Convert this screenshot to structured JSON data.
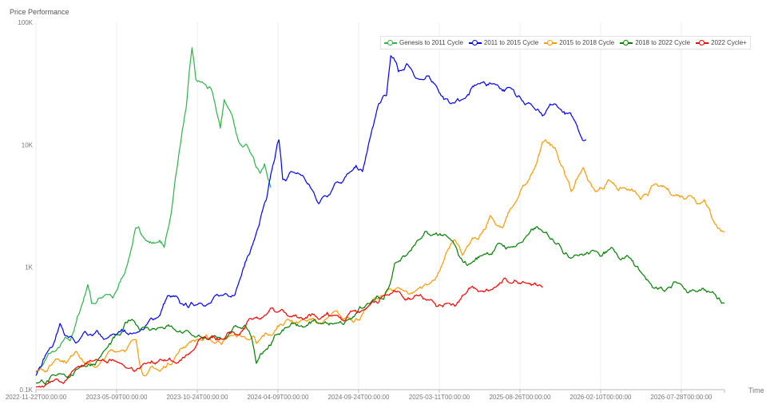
{
  "chart_data": {
    "type": "line",
    "title": "",
    "ylabel": "Price Performance",
    "xlabel": "Time",
    "yscale": "log",
    "ylim": [
      100,
      100000
    ],
    "yticks": [
      "100K",
      "10K",
      "1K",
      "0.1K"
    ],
    "ytick_values": [
      100000,
      10000,
      1000,
      100
    ],
    "xlim": [
      "2022-11-22",
      "2026-10-26"
    ],
    "xticks": [
      "2022-11-22T00:00:00",
      "2023-05-09T00:00:00",
      "2023-10-24T00:00:00",
      "2024-04-09T00:00:00",
      "2024-09-24T00:00:00",
      "2025-03-11T00:00:00",
      "2025-08-26T00:00:00",
      "2026-02-10T00:00:00",
      "2026-07-28T00:00:00"
    ],
    "grid": "vertical",
    "legend_position": "top-right",
    "series": [
      {
        "name": "Genesis to 2011 Cycle",
        "color": "#2eb34a",
        "points": [
          [
            "2022-11-22",
            141
          ],
          [
            "2022-12-01",
            150
          ],
          [
            "2023-01-01",
            206
          ],
          [
            "2023-02-01",
            250
          ],
          [
            "2023-03-10",
            720
          ],
          [
            "2023-03-18",
            506
          ],
          [
            "2023-04-01",
            560
          ],
          [
            "2023-05-01",
            560
          ],
          [
            "2023-06-01",
            1070
          ],
          [
            "2023-06-18",
            2100
          ],
          [
            "2023-07-01",
            1810
          ],
          [
            "2023-08-01",
            1600
          ],
          [
            "2023-08-16",
            1450
          ],
          [
            "2023-09-01",
            3000
          ],
          [
            "2023-09-15",
            8000
          ],
          [
            "2023-10-01",
            20000
          ],
          [
            "2023-10-13",
            62000
          ],
          [
            "2023-10-21",
            34000
          ],
          [
            "2023-11-07",
            31600
          ],
          [
            "2023-11-24",
            27200
          ],
          [
            "2023-12-11",
            13700
          ],
          [
            "2023-12-19",
            23400
          ],
          [
            "2024-01-05",
            17200
          ],
          [
            "2024-01-22",
            10000
          ],
          [
            "2024-02-07",
            9470
          ],
          [
            "2024-02-24",
            6500
          ],
          [
            "2024-03-12",
            7000
          ],
          [
            "2024-03-25",
            4470
          ]
        ]
      },
      {
        "name": "2011 to 2015 Cycle",
        "color": "#0000ff",
        "points": [
          [
            "2022-11-22",
            130
          ],
          [
            "2022-12-15",
            200
          ],
          [
            "2023-01-11",
            347
          ],
          [
            "2023-02-13",
            240
          ],
          [
            "2023-03-10",
            278
          ],
          [
            "2023-04-12",
            257
          ],
          [
            "2023-06-18",
            290
          ],
          [
            "2023-08-07",
            404
          ],
          [
            "2023-08-24",
            588
          ],
          [
            "2023-09-18",
            506
          ],
          [
            "2023-10-27",
            506
          ],
          [
            "2023-12-16",
            588
          ],
          [
            "2024-01-18",
            740
          ],
          [
            "2024-02-20",
            1680
          ],
          [
            "2024-03-16",
            3570
          ],
          [
            "2024-04-02",
            7560
          ],
          [
            "2024-04-11",
            11000
          ],
          [
            "2024-04-19",
            5190
          ],
          [
            "2024-05-06",
            6040
          ],
          [
            "2024-05-31",
            5590
          ],
          [
            "2024-07-03",
            3300
          ],
          [
            "2024-08-05",
            4800
          ],
          [
            "2024-09-07",
            6040
          ],
          [
            "2024-10-02",
            6040
          ],
          [
            "2024-10-19",
            11800
          ],
          [
            "2024-11-05",
            21700
          ],
          [
            "2024-11-21",
            25200
          ],
          [
            "2024-11-30",
            53500
          ],
          [
            "2024-12-16",
            39500
          ],
          [
            "2025-01-02",
            46000
          ],
          [
            "2025-02-04",
            34000
          ],
          [
            "2025-03-01",
            31600
          ],
          [
            "2025-04-03",
            21700
          ],
          [
            "2025-04-28",
            23400
          ],
          [
            "2025-05-31",
            31600
          ],
          [
            "2025-07-03",
            31600
          ],
          [
            "2025-08-05",
            29300
          ],
          [
            "2025-08-23",
            25200
          ],
          [
            "2025-09-17",
            21700
          ],
          [
            "2025-10-12",
            17200
          ],
          [
            "2025-11-14",
            20100
          ],
          [
            "2025-12-17",
            15900
          ],
          [
            "2026-01-11",
            11000
          ]
        ]
      },
      {
        "name": "2015 to 2018 Cycle",
        "color": "#ff9900",
        "points": [
          [
            "2022-11-22",
            141
          ],
          [
            "2023-01-02",
            177
          ],
          [
            "2023-02-13",
            206
          ],
          [
            "2023-03-27",
            152
          ],
          [
            "2023-05-16",
            206
          ],
          [
            "2023-06-18",
            257
          ],
          [
            "2023-07-05",
            130
          ],
          [
            "2023-08-07",
            141
          ],
          [
            "2023-09-10",
            191
          ],
          [
            "2023-10-05",
            239
          ],
          [
            "2023-10-27",
            257
          ],
          [
            "2023-11-30",
            239
          ],
          [
            "2024-01-02",
            278
          ],
          [
            "2024-02-07",
            257
          ],
          [
            "2024-02-24",
            239
          ],
          [
            "2024-03-28",
            278
          ],
          [
            "2024-04-28",
            375
          ],
          [
            "2024-05-31",
            375
          ],
          [
            "2024-07-03",
            347
          ],
          [
            "2024-08-22",
            375
          ],
          [
            "2024-10-12",
            470
          ],
          [
            "2024-11-15",
            588
          ],
          [
            "2024-12-16",
            682
          ],
          [
            "2025-01-19",
            633
          ],
          [
            "2025-02-21",
            740
          ],
          [
            "2025-03-18",
            1070
          ],
          [
            "2025-04-12",
            1680
          ],
          [
            "2025-04-28",
            1250
          ],
          [
            "2025-05-31",
            1680
          ],
          [
            "2025-06-25",
            2640
          ],
          [
            "2025-07-21",
            2100
          ],
          [
            "2025-08-15",
            3300
          ],
          [
            "2025-09-09",
            4800
          ],
          [
            "2025-09-26",
            6500
          ],
          [
            "2025-10-18",
            11000
          ],
          [
            "2025-11-07",
            9470
          ],
          [
            "2025-11-24",
            6500
          ],
          [
            "2025-12-11",
            4140
          ],
          [
            "2026-01-05",
            6500
          ],
          [
            "2026-01-30",
            4140
          ],
          [
            "2026-02-26",
            5190
          ],
          [
            "2026-03-31",
            4470
          ],
          [
            "2026-05-04",
            3570
          ],
          [
            "2026-06-06",
            4800
          ],
          [
            "2026-07-10",
            3840
          ],
          [
            "2026-08-12",
            3840
          ],
          [
            "2026-09-14",
            3570
          ],
          [
            "2026-10-01",
            2450
          ],
          [
            "2026-10-26",
            1950
          ]
        ]
      },
      {
        "name": "2018 to 2022 Cycle",
        "color": "#008000",
        "points": [
          [
            "2022-11-22",
            113
          ],
          [
            "2023-01-02",
            130
          ],
          [
            "2023-02-21",
            152
          ],
          [
            "2023-04-12",
            206
          ],
          [
            "2023-05-16",
            278
          ],
          [
            "2023-06-10",
            375
          ],
          [
            "2023-07-05",
            323
          ],
          [
            "2023-08-07",
            323
          ],
          [
            "2023-09-10",
            300
          ],
          [
            "2023-10-13",
            278
          ],
          [
            "2023-11-14",
            257
          ],
          [
            "2023-12-16",
            257
          ],
          [
            "2024-01-18",
            323
          ],
          [
            "2024-02-15",
            257
          ],
          [
            "2024-02-24",
            164
          ],
          [
            "2024-03-12",
            206
          ],
          [
            "2024-04-02",
            278
          ],
          [
            "2024-04-28",
            323
          ],
          [
            "2024-05-31",
            323
          ],
          [
            "2024-07-03",
            347
          ],
          [
            "2024-08-05",
            347
          ],
          [
            "2024-09-07",
            375
          ],
          [
            "2024-10-12",
            506
          ],
          [
            "2024-11-15",
            546
          ],
          [
            "2024-12-08",
            1070
          ],
          [
            "2025-01-02",
            1250
          ],
          [
            "2025-01-27",
            1680
          ],
          [
            "2025-02-21",
            1810
          ],
          [
            "2025-03-26",
            1810
          ],
          [
            "2025-04-20",
            1250
          ],
          [
            "2025-05-15",
            1070
          ],
          [
            "2025-06-09",
            1250
          ],
          [
            "2025-07-12",
            1570
          ],
          [
            "2025-08-05",
            1450
          ],
          [
            "2025-09-09",
            1810
          ],
          [
            "2025-10-12",
            1950
          ],
          [
            "2025-11-14",
            1570
          ],
          [
            "2025-12-17",
            1250
          ],
          [
            "2026-01-30",
            1350
          ],
          [
            "2026-03-04",
            1450
          ],
          [
            "2026-04-06",
            1250
          ],
          [
            "2026-05-04",
            921
          ],
          [
            "2026-05-29",
            682
          ],
          [
            "2026-06-23",
            633
          ],
          [
            "2026-07-24",
            740
          ],
          [
            "2026-08-27",
            633
          ],
          [
            "2026-10-01",
            633
          ],
          [
            "2026-10-26",
            506
          ]
        ]
      },
      {
        "name": "2022 Cycle+",
        "color": "#ff0000",
        "points": [
          [
            "2022-11-22",
            105
          ],
          [
            "2023-01-02",
            122
          ],
          [
            "2023-02-05",
            141
          ],
          [
            "2023-03-27",
            177
          ],
          [
            "2023-05-16",
            164
          ],
          [
            "2023-07-05",
            164
          ],
          [
            "2023-08-07",
            177
          ],
          [
            "2023-09-10",
            164
          ],
          [
            "2023-10-13",
            206
          ],
          [
            "2023-11-14",
            257
          ],
          [
            "2023-12-16",
            257
          ],
          [
            "2024-01-18",
            278
          ],
          [
            "2024-02-15",
            375
          ],
          [
            "2024-03-12",
            404
          ],
          [
            "2024-04-02",
            436
          ],
          [
            "2024-04-28",
            404
          ],
          [
            "2024-05-31",
            375
          ],
          [
            "2024-07-03",
            375
          ],
          [
            "2024-08-05",
            404
          ],
          [
            "2024-09-07",
            436
          ],
          [
            "2024-10-12",
            470
          ],
          [
            "2024-11-15",
            588
          ],
          [
            "2024-12-16",
            633
          ],
          [
            "2025-01-19",
            588
          ],
          [
            "2025-02-21",
            546
          ],
          [
            "2025-03-26",
            506
          ],
          [
            "2025-04-28",
            588
          ],
          [
            "2025-05-31",
            633
          ],
          [
            "2025-07-03",
            682
          ],
          [
            "2025-08-05",
            740
          ],
          [
            "2025-09-09",
            740
          ],
          [
            "2025-10-12",
            682
          ]
        ]
      }
    ]
  }
}
